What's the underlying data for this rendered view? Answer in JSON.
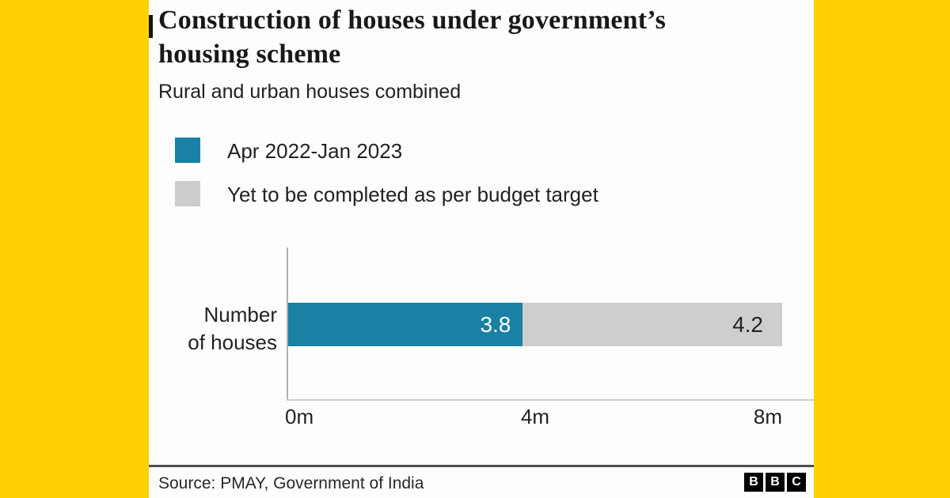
{
  "page": {
    "background_color": "#ffd102",
    "panel_color": "#fdfdfd"
  },
  "header": {
    "title": "Construction of houses under government’s housing scheme",
    "title_lines": [
      "Construction of houses under government’s",
      "housing scheme"
    ],
    "subtitle": "Rural and urban houses combined"
  },
  "legend": [
    {
      "label": "Apr 2022-Jan 2023",
      "color": "#1981a3"
    },
    {
      "label": "Yet to be completed as per budget target",
      "color": "#cccccc"
    }
  ],
  "chart_data": {
    "type": "bar",
    "orientation": "horizontal",
    "stacked": true,
    "title": "Construction of houses under government’s housing scheme",
    "subtitle": "Rural and urban houses combined",
    "categories": [
      "Number of houses"
    ],
    "category_lines": [
      "Number",
      "of houses"
    ],
    "series": [
      {
        "name": "Apr 2022-Jan 2023",
        "values": [
          3.8
        ],
        "color": "#1981a3"
      },
      {
        "name": "Yet to be completed as per budget target",
        "values": [
          4.2
        ],
        "color": "#cecece"
      }
    ],
    "data_labels": [
      "3.8",
      "4.2"
    ],
    "unit": "millions of houses",
    "xlim": [
      0,
      8
    ],
    "x_ticks": [
      "0m",
      "4m",
      "8m"
    ],
    "grid": false,
    "legend_position": "top-left"
  },
  "footer": {
    "source": "Source: PMAY, Government of India",
    "logo": [
      "B",
      "B",
      "C"
    ]
  }
}
